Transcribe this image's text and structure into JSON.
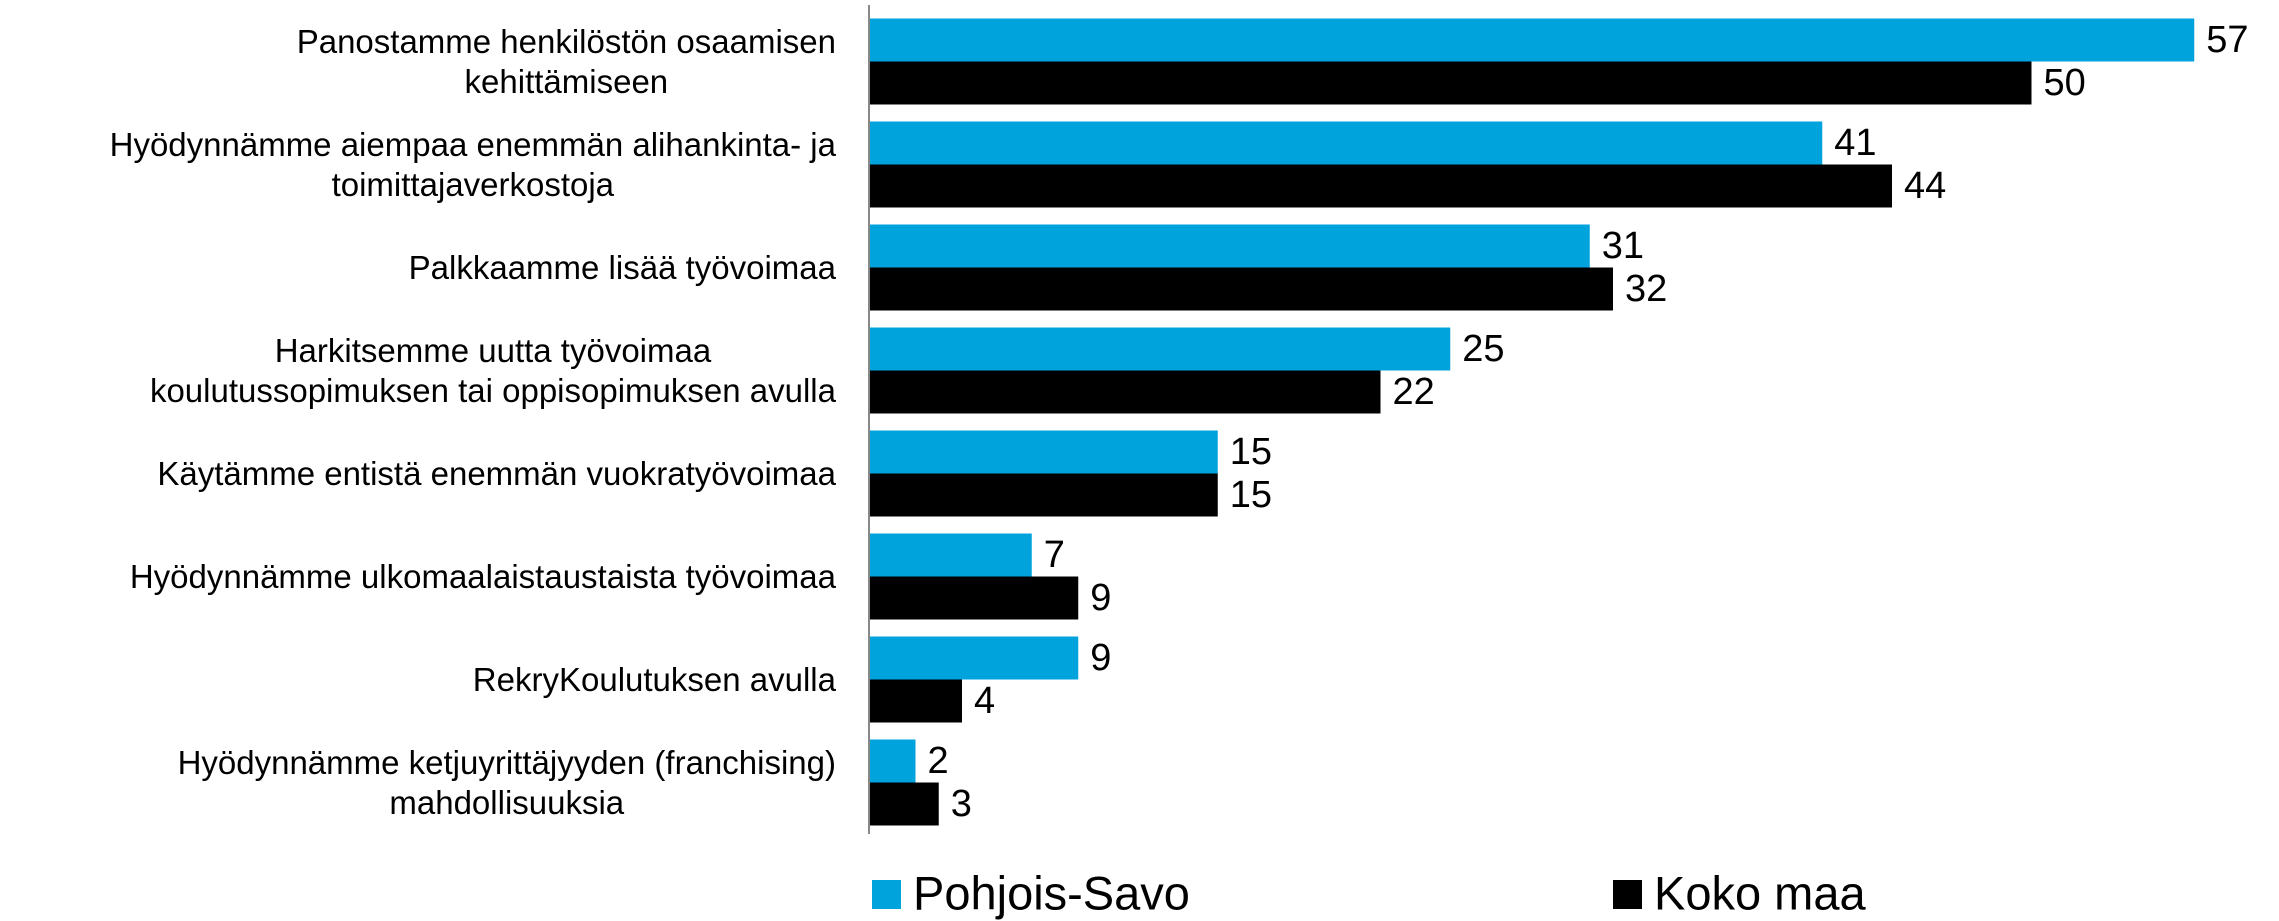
{
  "chart_data": {
    "type": "hbar",
    "categories": [
      "Panostamme henkilöstön  osaamisen\nkehittämiseen",
      "Hyödynnämme aiempaa enemmän alihankinta- ja\ntoimittajaverkostoja",
      "Palkkaamme lisää työvoimaa",
      "Harkitsemme uutta työvoimaa\nkoulutussopimuksen tai oppisopimuksen avulla",
      "Käytämme entistä enemmän vuokratyövoimaa",
      "Hyödynnämme ulkomaalaistaustaista työvoimaa",
      "RekryKoulutuksen avulla",
      "Hyödynnämme ketjuyrittäjyyden (franchising)\nmahdollisuuksia"
    ],
    "series": [
      {
        "name": "Pohjois-Savo",
        "color": "#00a3dc",
        "values": [
          57,
          41,
          31,
          25,
          15,
          7,
          9,
          2
        ]
      },
      {
        "name": "Koko maa",
        "color": "#000000",
        "values": [
          50,
          44,
          32,
          22,
          15,
          9,
          4,
          3
        ]
      }
    ],
    "xlim": [
      0,
      60
    ],
    "legend": "bottom"
  }
}
